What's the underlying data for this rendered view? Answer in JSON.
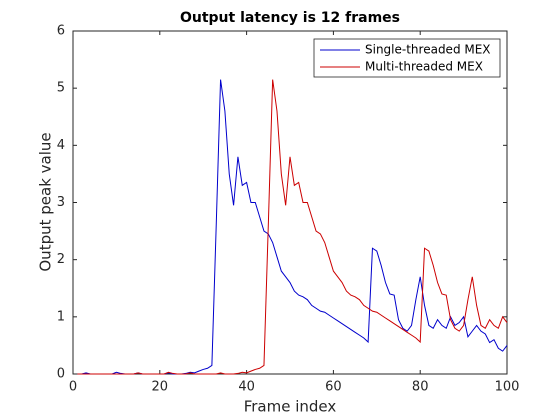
{
  "chart_data": {
    "type": "line",
    "title": "Output latency is 12 frames",
    "x_label": "Frame index",
    "y_label": "Output peak value",
    "x": [
      1,
      2,
      3,
      4,
      5,
      6,
      7,
      8,
      9,
      10,
      11,
      12,
      13,
      14,
      15,
      16,
      17,
      18,
      19,
      20,
      21,
      22,
      23,
      24,
      25,
      26,
      27,
      28,
      29,
      30,
      31,
      32,
      33,
      34,
      35,
      36,
      37,
      38,
      39,
      40,
      41,
      42,
      43,
      44,
      45,
      46,
      47,
      48,
      49,
      50,
      51,
      52,
      53,
      54,
      55,
      56,
      57,
      58,
      59,
      60,
      61,
      62,
      63,
      64,
      65,
      66,
      67,
      68,
      69,
      70,
      71,
      72,
      73,
      74,
      75,
      76,
      77,
      78,
      79,
      80,
      81,
      82,
      83,
      84,
      85,
      86,
      87,
      88,
      89,
      90,
      91,
      92,
      93,
      94,
      95,
      96,
      97,
      98,
      99,
      100
    ],
    "series": [
      {
        "name": "Single-threaded MEX",
        "color": "#0000cc",
        "values": [
          0,
          0,
          0.02,
          0,
          0,
          0,
          0,
          0,
          0,
          0.03,
          0.01,
          0,
          0,
          0,
          0.02,
          0,
          0,
          0,
          0,
          0,
          0,
          0.02,
          0,
          0,
          0,
          0.01,
          0.03,
          0.02,
          0.05,
          0.08,
          0.1,
          0.15,
          2.6,
          5.15,
          4.6,
          3.5,
          2.95,
          3.8,
          3.3,
          3.35,
          3.0,
          3.0,
          2.75,
          2.5,
          2.45,
          2.3,
          2.05,
          1.8,
          1.7,
          1.6,
          1.45,
          1.38,
          1.35,
          1.3,
          1.2,
          1.15,
          1.1,
          1.08,
          1.03,
          0.98,
          0.93,
          0.88,
          0.83,
          0.78,
          0.73,
          0.68,
          0.63,
          0.56,
          2.2,
          2.15,
          1.9,
          1.6,
          1.4,
          1.38,
          0.95,
          0.8,
          0.75,
          0.85,
          1.3,
          1.7,
          1.2,
          0.85,
          0.8,
          0.95,
          0.85,
          0.8,
          1.0,
          0.85,
          0.9,
          1.0,
          0.65,
          0.75,
          0.85,
          0.75,
          0.7,
          0.55,
          0.6,
          0.45,
          0.4,
          0.5
        ]
      },
      {
        "name": "Multi-threaded MEX",
        "color": "#cc0000",
        "values": [
          0,
          0,
          0,
          0,
          0,
          0,
          0,
          0,
          0,
          0,
          0,
          0,
          0,
          0,
          0.02,
          0,
          0,
          0,
          0,
          0,
          0,
          0.03,
          0.01,
          0,
          0,
          0,
          0.02,
          0,
          0,
          0,
          0,
          0,
          0,
          0.02,
          0,
          0,
          0,
          0.01,
          0.03,
          0.02,
          0.05,
          0.08,
          0.1,
          0.15,
          2.6,
          5.15,
          4.6,
          3.5,
          2.95,
          3.8,
          3.3,
          3.35,
          3.0,
          3.0,
          2.75,
          2.5,
          2.45,
          2.3,
          2.05,
          1.8,
          1.7,
          1.6,
          1.45,
          1.38,
          1.35,
          1.3,
          1.2,
          1.15,
          1.1,
          1.08,
          1.03,
          0.98,
          0.93,
          0.88,
          0.83,
          0.78,
          0.73,
          0.68,
          0.63,
          0.56,
          2.2,
          2.15,
          1.9,
          1.6,
          1.4,
          1.38,
          0.95,
          0.8,
          0.75,
          0.85,
          1.3,
          1.7,
          1.2,
          0.85,
          0.8,
          0.95,
          0.85,
          0.8,
          1.0,
          0.9
        ]
      }
    ],
    "xlim": [
      0,
      100
    ],
    "xticks": [
      0,
      20,
      40,
      60,
      80,
      100
    ],
    "ylim": [
      0,
      6
    ],
    "yticks": [
      0,
      1,
      2,
      3,
      4,
      5,
      6
    ],
    "legend": "northeast",
    "grid": false
  }
}
